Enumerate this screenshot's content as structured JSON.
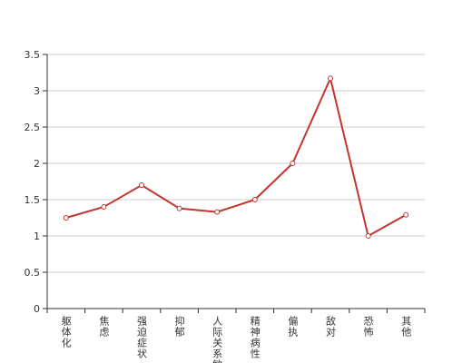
{
  "chart_data": {
    "type": "line",
    "categories": [
      "躯体化",
      "焦虑",
      "强迫症状",
      "抑郁",
      "人际关系敏感",
      "精神病性",
      "偏执",
      "敌对",
      "恐怖",
      "其他"
    ],
    "series": [
      {
        "color": "#c23531",
        "values": [
          1.25,
          1.4,
          1.7,
          1.38,
          1.33,
          1.5,
          2.0,
          3.17,
          1.0,
          1.29
        ]
      }
    ],
    "ylim": [
      0,
      3.5
    ],
    "yticks": [
      0,
      0.5,
      1,
      1.5,
      2,
      2.5,
      3,
      3.5
    ],
    "grid": true
  }
}
